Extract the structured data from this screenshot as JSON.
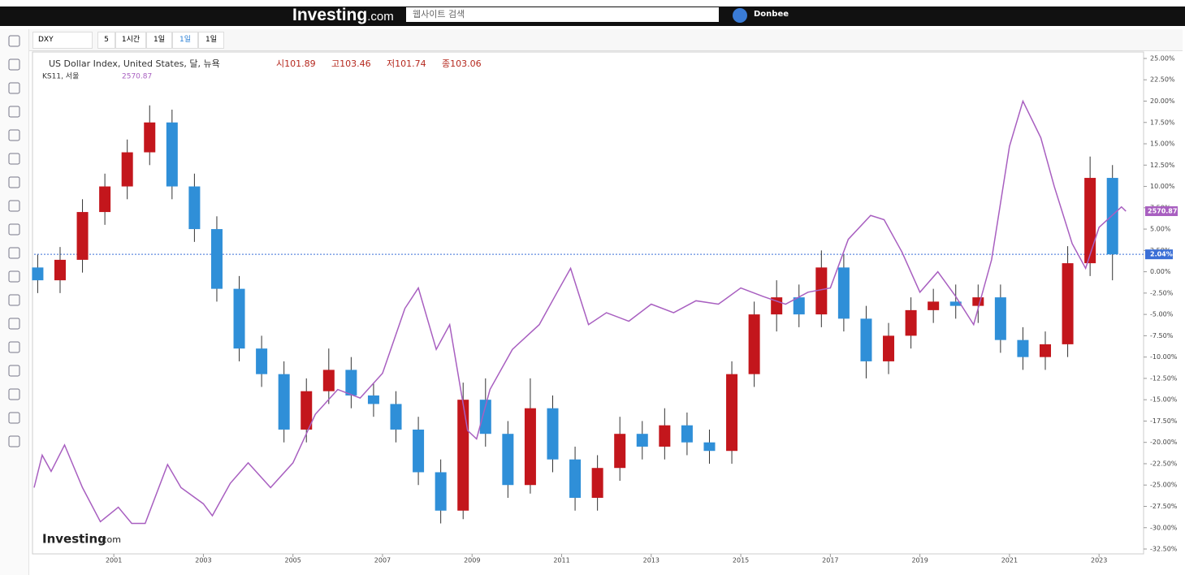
{
  "ui": {
    "logo": "Investing",
    "logo_suffix": ".com",
    "search_placeholder": "웹사이트 검색",
    "user": "Donbee",
    "toolbar": {
      "symbol": "DXY",
      "intervals": [
        "5",
        "1시간",
        "1일",
        "1일",
        "1일"
      ]
    },
    "watermark": "Investing",
    "watermark_suffix": ".com"
  },
  "chart_data": {
    "type": "candlestick",
    "title": "US Dollar Index, United States, 달, 뉴욕",
    "header_values": [
      "시101.89",
      "고103.46",
      "저101.74",
      "종103.06"
    ],
    "up_color": "#c3161c",
    "down_color": "#2f8fd8",
    "x": [
      1999.3,
      1999.8,
      2000.3,
      2000.8,
      2001.3,
      2001.8,
      2002.3,
      2002.8,
      2003.3,
      2003.8,
      2004.3,
      2004.8,
      2005.3,
      2005.8,
      2006.3,
      2006.8,
      2007.3,
      2007.8,
      2008.3,
      2008.8,
      2009.3,
      2009.8,
      2010.3,
      2010.8,
      2011.3,
      2011.8,
      2012.3,
      2012.8,
      2013.3,
      2013.8,
      2014.3,
      2014.8,
      2015.3,
      2015.8,
      2016.3,
      2016.8,
      2017.3,
      2017.8,
      2018.3,
      2018.8,
      2019.3,
      2019.8,
      2020.3,
      2020.8,
      2021.3,
      2021.8,
      2022.3,
      2022.8,
      2023.3
    ],
    "open": [
      0.5,
      -1.0,
      1.4,
      7.0,
      10.0,
      14.0,
      17.5,
      10.0,
      5.0,
      -2.0,
      -9.0,
      -12.0,
      -18.5,
      -14.0,
      -11.5,
      -14.5,
      -15.5,
      -18.5,
      -23.5,
      -28.0,
      -15.0,
      -19.0,
      -25.0,
      -16.0,
      -22.0,
      -26.5,
      -23.0,
      -19.0,
      -20.5,
      -18.0,
      -20.0,
      -21.0,
      -12.0,
      -5.0,
      -3.0,
      -5.0,
      0.5,
      -5.5,
      -10.5,
      -7.5,
      -4.5,
      -3.5,
      -4.0,
      -3.0,
      -8.0,
      -10.0,
      -8.5,
      1.0,
      11.0
    ],
    "high": [
      2.0,
      2.9,
      8.5,
      11.5,
      15.5,
      19.5,
      19.0,
      11.5,
      6.5,
      -0.5,
      -7.5,
      -10.5,
      -12.5,
      -9.0,
      -10.0,
      -13.0,
      -14.0,
      -17.0,
      -22.0,
      -13.0,
      -12.5,
      -17.5,
      -12.5,
      -14.5,
      -20.5,
      -21.5,
      -17.0,
      -17.5,
      -16.0,
      -16.5,
      -18.5,
      -10.5,
      -3.5,
      -1.0,
      -1.5,
      2.5,
      2.0,
      -4.0,
      -6.0,
      -3.0,
      -2.0,
      -1.5,
      -1.5,
      -1.5,
      -6.5,
      -7.0,
      3.0,
      13.5,
      12.5
    ],
    "low": [
      -2.5,
      -2.5,
      -0.1,
      5.5,
      8.5,
      12.5,
      8.5,
      3.5,
      -3.5,
      -10.5,
      -13.5,
      -20.0,
      -20.0,
      -15.5,
      -16.0,
      -17.0,
      -20.0,
      -25.0,
      -29.5,
      -29.0,
      -20.5,
      -26.5,
      -26.0,
      -23.5,
      -28.0,
      -28.0,
      -24.5,
      -22.0,
      -22.0,
      -21.5,
      -22.5,
      -22.5,
      -13.5,
      -7.0,
      -6.5,
      -6.5,
      -7.0,
      -12.5,
      -12.0,
      -9.0,
      -6.0,
      -5.5,
      -6.0,
      -9.5,
      -11.5,
      -11.5,
      -10.0,
      -0.5,
      -1.0
    ],
    "close": [
      -1.0,
      1.4,
      7.0,
      10.0,
      14.0,
      17.5,
      10.0,
      5.0,
      -2.0,
      -9.0,
      -12.0,
      -18.5,
      -14.0,
      -11.5,
      -14.5,
      -15.5,
      -18.5,
      -23.5,
      -28.0,
      -15.0,
      -19.0,
      -25.0,
      -16.0,
      -22.0,
      -26.5,
      -23.0,
      -19.0,
      -20.5,
      -18.0,
      -20.0,
      -21.0,
      -12.0,
      -5.0,
      -3.0,
      -5.0,
      0.5,
      -5.5,
      -10.5,
      -7.5,
      -4.5,
      -3.5,
      -4.0,
      -3.0,
      -8.0,
      -10.0,
      -8.5,
      1.0,
      11.0,
      2.04
    ],
    "last_line": {
      "value": 2.04,
      "label": "2.04%",
      "color": "#3b6fd6"
    },
    "series": [
      {
        "name": "KS11, 서울",
        "color": "#a85fc0",
        "last_label": "2570.87",
        "x": [
          1999.22,
          1999.4,
          1999.6,
          1999.9,
          2000.3,
          2000.7,
          2001.1,
          2001.4,
          2001.7,
          2002.2,
          2002.5,
          2003.0,
          2003.2,
          2003.6,
          2004.0,
          2004.5,
          2005.0,
          2005.5,
          2006.0,
          2006.5,
          2007.0,
          2007.5,
          2007.8,
          2008.2,
          2008.5,
          2008.9,
          2009.1,
          2009.4,
          2009.9,
          2010.5,
          2010.9,
          2011.2,
          2011.6,
          2012.0,
          2012.5,
          2013.0,
          2013.5,
          2014.0,
          2014.5,
          2015.0,
          2015.5,
          2016.0,
          2016.5,
          2017.0,
          2017.4,
          2017.9,
          2018.2,
          2018.6,
          2019.0,
          2019.4,
          2019.8,
          2020.2,
          2020.6,
          2021.0,
          2021.3,
          2021.7,
          2022.0,
          2022.4,
          2022.7,
          2023.0,
          2023.5,
          2023.6
        ],
        "values": [
          -25.3,
          -21.5,
          -23.4,
          -20.3,
          -25.3,
          -29.3,
          -27.6,
          -29.5,
          -29.5,
          -22.6,
          -25.3,
          -27.2,
          -28.6,
          -24.8,
          -22.4,
          -25.3,
          -22.4,
          -16.7,
          -13.8,
          -14.8,
          -11.9,
          -4.3,
          -1.9,
          -9.1,
          -6.2,
          -18.6,
          -19.6,
          -13.8,
          -9.1,
          -6.2,
          -2.4,
          0.4,
          -6.2,
          -4.8,
          -5.8,
          -3.8,
          -4.8,
          -3.4,
          -3.8,
          -1.9,
          -2.9,
          -3.8,
          -2.4,
          -1.9,
          3.8,
          6.6,
          6.1,
          2.3,
          -2.4,
          0.0,
          -2.9,
          -6.2,
          1.4,
          14.7,
          20.0,
          15.7,
          10.0,
          3.3,
          0.4,
          5.2,
          7.6,
          7.1
        ]
      }
    ],
    "xlim": [
      1999.22,
      2023.94
    ],
    "xticks": [
      2001,
      2003,
      2005,
      2007,
      2009,
      2011,
      2013,
      2015,
      2017,
      2019,
      2021,
      2023
    ],
    "ylim": [
      -33.07,
      25.76
    ],
    "yticks": [
      {
        "value": 25,
        "label": "25.00%"
      },
      {
        "value": 22.5,
        "label": "22.50%"
      },
      {
        "value": 20,
        "label": "20.00%"
      },
      {
        "value": 17.5,
        "label": "17.50%"
      },
      {
        "value": 15,
        "label": "15.00%"
      },
      {
        "value": 12.5,
        "label": "12.50%"
      },
      {
        "value": 10,
        "label": "10.00%"
      },
      {
        "value": 7.5,
        "label": "7.50%"
      },
      {
        "value": 5,
        "label": "5.00%"
      },
      {
        "value": 2.5,
        "label": "2.50%"
      },
      {
        "value": 0,
        "label": "0.00%"
      },
      {
        "value": -2.5,
        "label": "-2.50%"
      },
      {
        "value": -5,
        "label": "-5.00%"
      },
      {
        "value": -7.5,
        "label": "-7.50%"
      },
      {
        "value": -10,
        "label": "-10.00%"
      },
      {
        "value": -12.5,
        "label": "-12.50%"
      },
      {
        "value": -15,
        "label": "-15.00%"
      },
      {
        "value": -17.5,
        "label": "-17.50%"
      },
      {
        "value": -20,
        "label": "-20.00%"
      },
      {
        "value": -22.5,
        "label": "-22.50%"
      },
      {
        "value": -25,
        "label": "-25.00%"
      },
      {
        "value": -27.5,
        "label": "-27.50%"
      },
      {
        "value": -30,
        "label": "-30.00%"
      },
      {
        "value": -32.5,
        "label": "-32.50%"
      }
    ]
  }
}
